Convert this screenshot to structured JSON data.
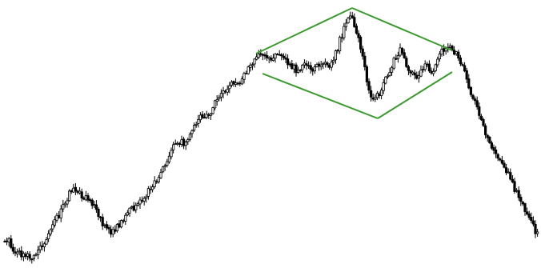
{
  "chart_data": {
    "type": "candlestick",
    "title": "",
    "xlabel": "",
    "ylabel": "",
    "axes_visible": false,
    "grid": false,
    "legend": "none",
    "ylim": [
      0,
      335
    ],
    "colors": {
      "up_body": "#ffffff",
      "down_body": "#000000",
      "wick": "#000000",
      "pattern": "#3a9a2e"
    },
    "anchors": [
      [
        0,
        30
      ],
      [
        10,
        35
      ],
      [
        20,
        18
      ],
      [
        40,
        14
      ],
      [
        60,
        40
      ],
      [
        80,
        80
      ],
      [
        90,
        98
      ],
      [
        100,
        93
      ],
      [
        120,
        75
      ],
      [
        130,
        50
      ],
      [
        140,
        44
      ],
      [
        150,
        55
      ],
      [
        160,
        70
      ],
      [
        180,
        88
      ],
      [
        200,
        118
      ],
      [
        210,
        140
      ],
      [
        220,
        158
      ],
      [
        230,
        156
      ],
      [
        240,
        170
      ],
      [
        250,
        190
      ],
      [
        260,
        188
      ],
      [
        270,
        210
      ],
      [
        280,
        222
      ],
      [
        290,
        230
      ],
      [
        300,
        235
      ],
      [
        310,
        250
      ],
      [
        320,
        265
      ],
      [
        330,
        268
      ],
      [
        340,
        262
      ],
      [
        350,
        266
      ],
      [
        360,
        258
      ],
      [
        370,
        247
      ],
      [
        380,
        254
      ],
      [
        390,
        246
      ],
      [
        400,
        258
      ],
      [
        410,
        251
      ],
      [
        420,
        270
      ],
      [
        430,
        300
      ],
      [
        435,
        312
      ],
      [
        440,
        310
      ],
      [
        450,
        280
      ],
      [
        460,
        225
      ],
      [
        465,
        205
      ],
      [
        470,
        220
      ],
      [
        475,
        215
      ],
      [
        480,
        230
      ],
      [
        490,
        255
      ],
      [
        500,
        272
      ],
      [
        510,
        250
      ],
      [
        520,
        237
      ],
      [
        530,
        255
      ],
      [
        540,
        245
      ],
      [
        550,
        270
      ],
      [
        560,
        278
      ],
      [
        570,
        268
      ],
      [
        580,
        245
      ],
      [
        590,
        215
      ],
      [
        600,
        190
      ],
      [
        610,
        160
      ],
      [
        620,
        145
      ],
      [
        630,
        128
      ],
      [
        640,
        105
      ],
      [
        650,
        85
      ],
      [
        660,
        65
      ],
      [
        670,
        45
      ],
      [
        676,
        35
      ]
    ],
    "pattern": {
      "name": "diamond",
      "upper_lines": [
        [
          [
            320,
            268
          ],
          [
            440,
            325
          ]
        ],
        [
          [
            440,
            325
          ],
          [
            565,
            272
          ]
        ]
      ],
      "lower_lines": [
        [
          [
            328,
            243
          ],
          [
            472,
            187
          ]
        ],
        [
          [
            472,
            187
          ],
          [
            565,
            245
          ]
        ]
      ]
    }
  }
}
